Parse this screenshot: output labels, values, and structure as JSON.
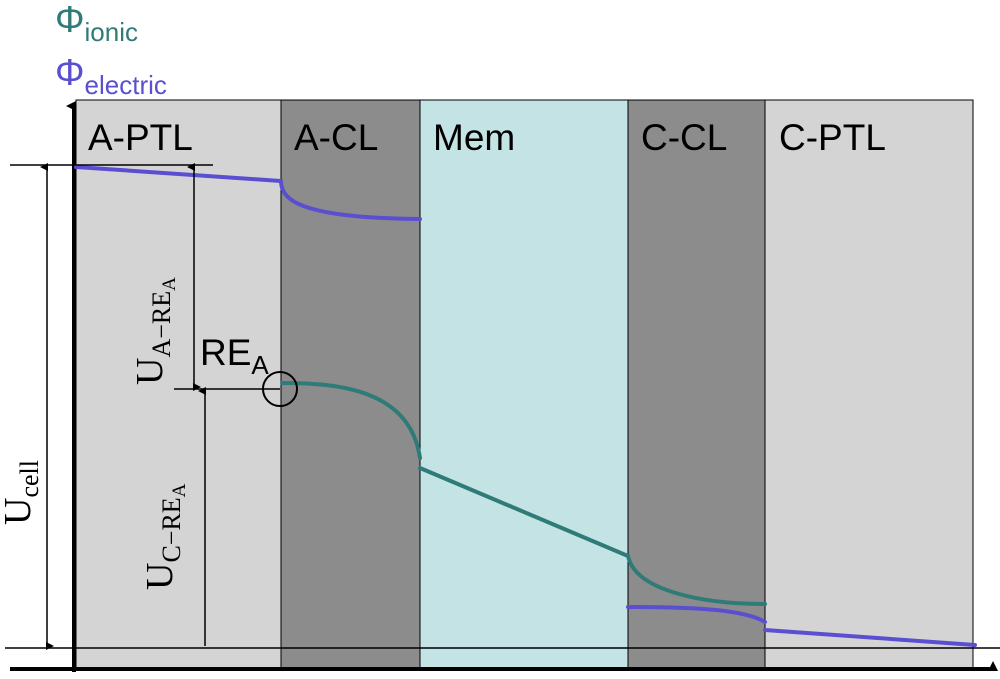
{
  "legend": {
    "ionic": {
      "symbol": "Φ",
      "subscript": "ionic",
      "color": "#2f7b78"
    },
    "electric": {
      "symbol": "Φ",
      "subscript": "electric",
      "color": "#5a4fd0"
    }
  },
  "regions": [
    {
      "id": "a-ptl",
      "label": "A-PTL",
      "fill": "#d4d4d4"
    },
    {
      "id": "a-cl",
      "label": "A-CL",
      "fill": "#8c8c8c"
    },
    {
      "id": "mem",
      "label": "Mem",
      "fill": "#c4e3e5"
    },
    {
      "id": "c-cl",
      "label": "C-CL",
      "fill": "#8c8c8c"
    },
    {
      "id": "c-ptl",
      "label": "C-PTL",
      "fill": "#d4d4d4"
    }
  ],
  "annotations": {
    "ref_electrode": {
      "main": "RE",
      "sub": "A"
    },
    "u_a_re": {
      "main": "U",
      "sub": "A−RE",
      "subsub": "A"
    },
    "u_c_re": {
      "main": "U",
      "sub": "C−RE",
      "subsub": "A"
    },
    "u_cell": {
      "main": "U",
      "sub": "cell"
    }
  }
}
